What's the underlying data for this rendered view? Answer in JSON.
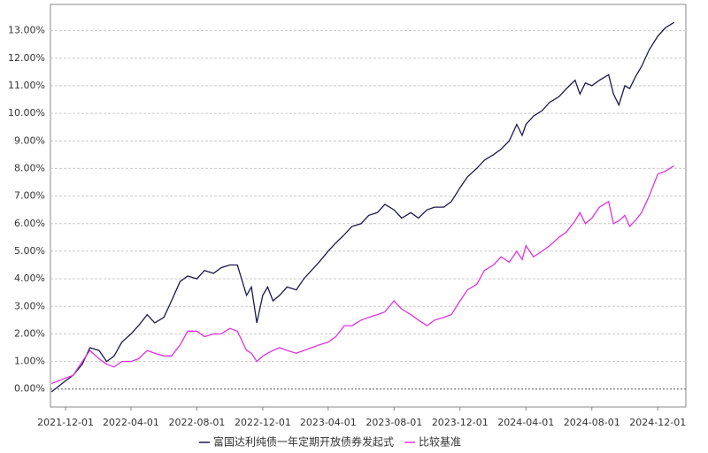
{
  "chart_data": {
    "type": "line",
    "x": [
      "2021-11-05",
      "2021-12-01",
      "2021-12-15",
      "2022-01-01",
      "2022-01-15",
      "2022-02-01",
      "2022-02-15",
      "2022-03-01",
      "2022-03-15",
      "2022-04-01",
      "2022-04-15",
      "2022-05-01",
      "2022-05-15",
      "2022-06-01",
      "2022-06-15",
      "2022-07-01",
      "2022-07-15",
      "2022-08-01",
      "2022-08-15",
      "2022-09-01",
      "2022-09-15",
      "2022-10-01",
      "2022-10-15",
      "2022-11-01",
      "2022-11-10",
      "2022-11-20",
      "2022-12-01",
      "2022-12-10",
      "2022-12-20",
      "2023-01-01",
      "2023-01-15",
      "2023-02-01",
      "2023-02-15",
      "2023-03-01",
      "2023-03-15",
      "2023-04-01",
      "2023-04-15",
      "2023-05-01",
      "2023-05-15",
      "2023-06-01",
      "2023-06-15",
      "2023-07-01",
      "2023-07-15",
      "2023-08-01",
      "2023-08-15",
      "2023-09-01",
      "2023-09-15",
      "2023-10-01",
      "2023-10-15",
      "2023-11-01",
      "2023-11-15",
      "2023-12-01",
      "2023-12-15",
      "2024-01-01",
      "2024-01-15",
      "2024-02-01",
      "2024-02-15",
      "2024-03-01",
      "2024-03-15",
      "2024-03-25",
      "2024-04-01",
      "2024-04-15",
      "2024-05-01",
      "2024-05-15",
      "2024-06-01",
      "2024-06-15",
      "2024-07-01",
      "2024-07-10",
      "2024-07-20",
      "2024-08-01",
      "2024-08-15",
      "2024-09-01",
      "2024-09-10",
      "2024-09-20",
      "2024-10-01",
      "2024-10-10",
      "2024-10-20",
      "2024-11-01",
      "2024-11-15",
      "2024-12-01",
      "2024-12-15",
      "2024-12-31"
    ],
    "series": [
      {
        "name": "富国达利纯债一年定期开放债券发起式",
        "color": "#1a1a4e",
        "values": [
          -0.1,
          0.3,
          0.5,
          0.9,
          1.5,
          1.4,
          1.0,
          1.2,
          1.7,
          2.0,
          2.3,
          2.7,
          2.4,
          2.6,
          3.2,
          3.9,
          4.1,
          4.0,
          4.3,
          4.2,
          4.4,
          4.5,
          4.5,
          3.4,
          3.7,
          2.4,
          3.4,
          3.7,
          3.2,
          3.4,
          3.7,
          3.6,
          4.0,
          4.3,
          4.6,
          5.0,
          5.3,
          5.6,
          5.9,
          6.0,
          6.3,
          6.4,
          6.7,
          6.5,
          6.2,
          6.4,
          6.2,
          6.5,
          6.6,
          6.6,
          6.8,
          7.3,
          7.7,
          8.0,
          8.3,
          8.5,
          8.7,
          9.0,
          9.6,
          9.2,
          9.6,
          9.9,
          10.1,
          10.4,
          10.6,
          10.9,
          11.2,
          10.7,
          11.1,
          11.0,
          11.2,
          11.4,
          10.7,
          10.3,
          11.0,
          10.9,
          11.3,
          11.7,
          12.3,
          12.8,
          13.1,
          13.3
        ]
      },
      {
        "name": "比较基准",
        "color": "#e033e0",
        "values": [
          0.2,
          0.4,
          0.5,
          1.0,
          1.4,
          1.1,
          0.9,
          0.8,
          1.0,
          1.0,
          1.1,
          1.4,
          1.3,
          1.2,
          1.2,
          1.6,
          2.1,
          2.1,
          1.9,
          2.0,
          2.0,
          2.2,
          2.1,
          1.4,
          1.3,
          1.0,
          1.2,
          1.3,
          1.4,
          1.5,
          1.4,
          1.3,
          1.4,
          1.5,
          1.6,
          1.7,
          1.9,
          2.3,
          2.3,
          2.5,
          2.6,
          2.7,
          2.8,
          3.2,
          2.9,
          2.7,
          2.5,
          2.3,
          2.5,
          2.6,
          2.7,
          3.2,
          3.6,
          3.8,
          4.3,
          4.5,
          4.8,
          4.6,
          5.0,
          4.7,
          5.2,
          4.8,
          5.0,
          5.2,
          5.5,
          5.7,
          6.1,
          6.4,
          6.0,
          6.2,
          6.6,
          6.8,
          6.0,
          6.1,
          6.3,
          5.9,
          6.1,
          6.4,
          7.0,
          7.8,
          7.9,
          8.1
        ]
      }
    ],
    "xlim": [
      "2021-11-03",
      "2025-01-22"
    ],
    "xticks": [
      "2021-12-01",
      "2022-04-01",
      "2022-08-01",
      "2022-12-01",
      "2023-04-01",
      "2023-08-01",
      "2023-12-01",
      "2024-04-01",
      "2024-08-01",
      "2024-12-01"
    ],
    "ylim": [
      -0.65,
      13.95
    ],
    "yticks": [
      {
        "value": 0,
        "label": "0.00%"
      },
      {
        "value": 1,
        "label": "1.00%"
      },
      {
        "value": 2,
        "label": "2.00%"
      },
      {
        "value": 3,
        "label": "3.00%"
      },
      {
        "value": 4,
        "label": "4.00%"
      },
      {
        "value": 5,
        "label": "5.00%"
      },
      {
        "value": 6,
        "label": "6.00%"
      },
      {
        "value": 7,
        "label": "7.00%"
      },
      {
        "value": 8,
        "label": "8.00%"
      },
      {
        "value": 9,
        "label": "9.00%"
      },
      {
        "value": 10,
        "label": "10.00%"
      },
      {
        "value": 11,
        "label": "11.00%"
      },
      {
        "value": 12,
        "label": "12.00%"
      },
      {
        "value": 13,
        "label": "13.00%"
      }
    ],
    "grid": true,
    "legend": "bottom"
  }
}
